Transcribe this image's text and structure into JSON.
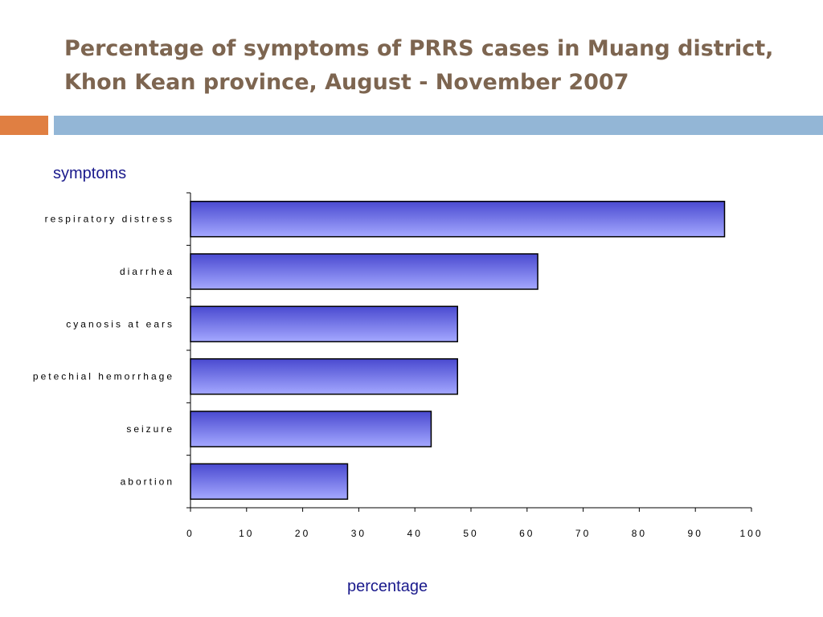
{
  "title": {
    "line1": "Percentage of symptoms of PRRS cases in Muang district,",
    "line2": "Khon Kean province,  August - November 2007"
  },
  "colors": {
    "title": "#7d6550",
    "accent_orange": "#e07f42",
    "accent_blue": "#93b6d6",
    "bar_fill_dark": "#4a4ad0",
    "bar_fill_light": "#a4a8ff",
    "axis_label": "#1a1a8c"
  },
  "chart_data": {
    "type": "bar",
    "orientation": "horizontal",
    "ylabel": "symptoms",
    "xlabel": "percentage",
    "xlim": [
      0,
      100
    ],
    "xticks": [
      "0",
      "10",
      "20",
      "30",
      "40",
      "50",
      "60",
      "70",
      "80",
      "90",
      "100"
    ],
    "categories": [
      "respiratory distress",
      "diarrhea",
      "cyanosis at ears",
      "petechial hemorrhage",
      "seizure",
      "abortion"
    ],
    "values": [
      95.2,
      61.9,
      47.6,
      47.6,
      42.9,
      28.0
    ],
    "grid": false,
    "legend": "none"
  }
}
